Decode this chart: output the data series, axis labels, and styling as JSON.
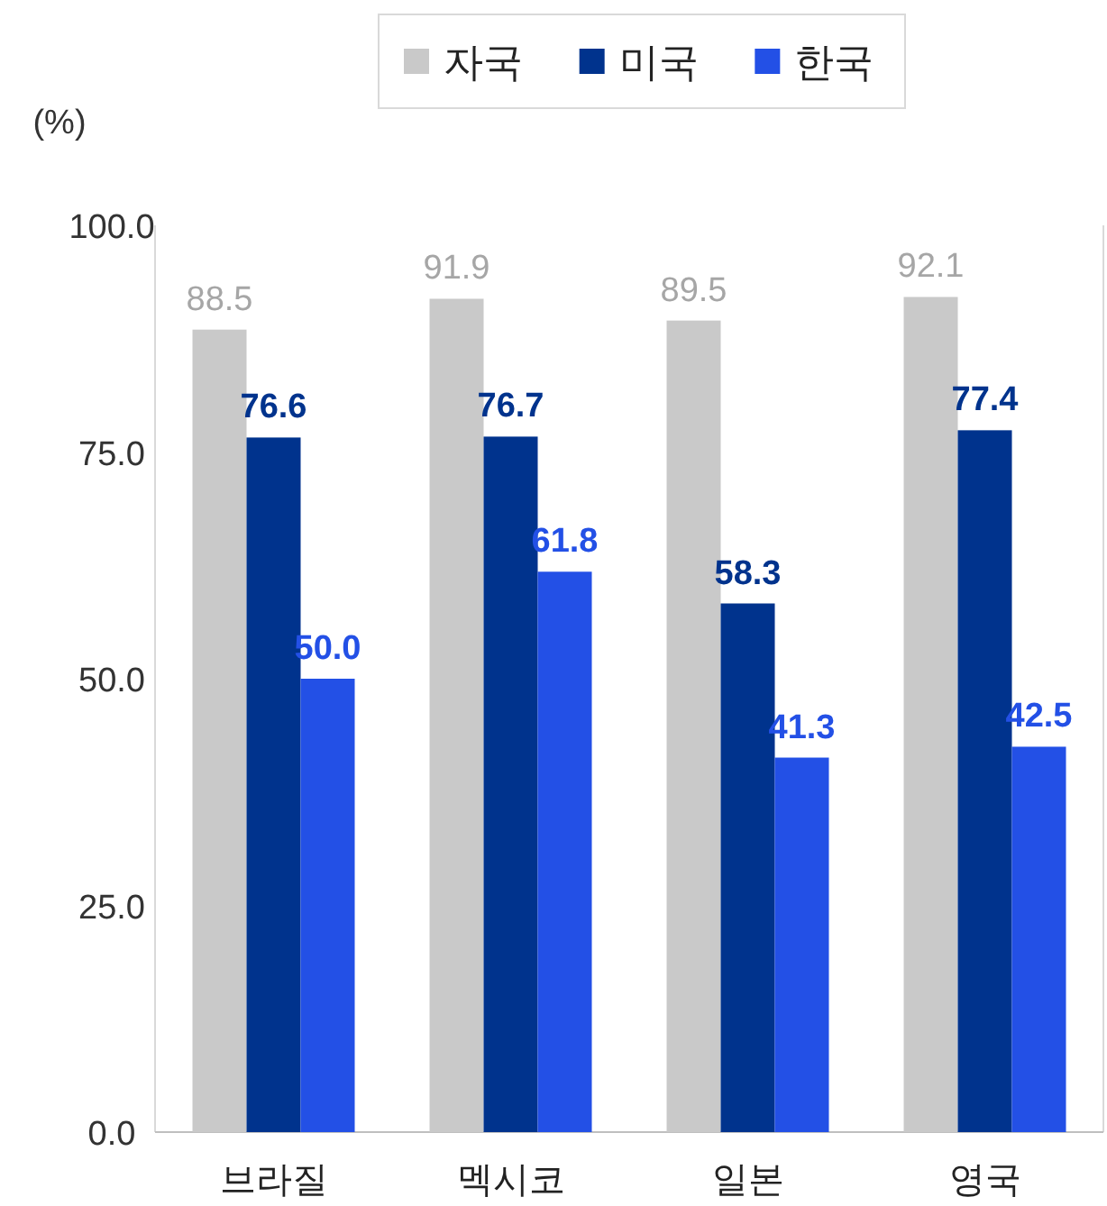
{
  "chart_data": {
    "type": "bar",
    "ylabel": "(%)",
    "categories": [
      "브라질",
      "멕시코",
      "일본",
      "영국"
    ],
    "series": [
      {
        "name": "자국",
        "color": "#c9c9c9",
        "values": [
          88.5,
          91.9,
          89.5,
          92.1
        ],
        "value_labels": [
          "88.5",
          "91.9",
          "89.5",
          "92.1"
        ]
      },
      {
        "name": "미국",
        "color": "#00338d",
        "values": [
          76.6,
          76.7,
          58.3,
          77.4
        ],
        "value_labels": [
          "76.6",
          "76.7",
          "58.3",
          "77.4"
        ]
      },
      {
        "name": "한국",
        "color": "#2350e6",
        "values": [
          50.0,
          61.8,
          41.3,
          42.5
        ],
        "value_labels": [
          "50.0",
          "61.8",
          "41.3",
          "42.5"
        ]
      }
    ],
    "ylim": [
      0,
      100
    ],
    "yticks": [
      {
        "value": 0,
        "label": "0.0"
      },
      {
        "value": 25,
        "label": "25.0"
      },
      {
        "value": 50,
        "label": "50.0"
      },
      {
        "value": 75,
        "label": "75.0"
      },
      {
        "value": 100,
        "label": "100.0"
      }
    ],
    "legend": "top"
  }
}
